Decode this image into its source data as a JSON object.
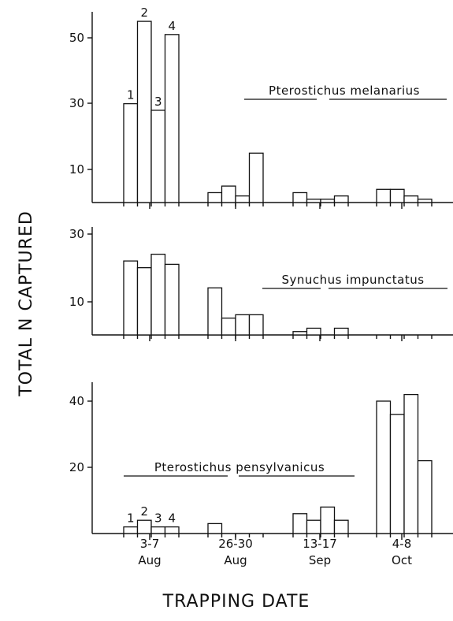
{
  "ylabel": "TOTAL N CAPTURED",
  "xlabel": "TRAPPING DATE",
  "x_groups": [
    {
      "line1": "3-7",
      "line2": "Aug"
    },
    {
      "line1": "26-30",
      "line2": "Aug"
    },
    {
      "line1": "13-17",
      "line2": "Sep"
    },
    {
      "line1": "4-8",
      "line2": "Oct"
    }
  ],
  "chart_data": [
    {
      "type": "bar",
      "title": "Pterostichus melanarius",
      "yticks": [
        10,
        30,
        50
      ],
      "ylim": [
        0,
        55
      ],
      "bar_numbers": [
        "1",
        "2",
        "3",
        "4"
      ],
      "groups": [
        {
          "label": "3-7 Aug",
          "values": [
            30,
            55,
            28,
            51
          ]
        },
        {
          "label": "26-30 Aug",
          "values": [
            3,
            5,
            2,
            15
          ]
        },
        {
          "label": "13-17 Sep",
          "values": [
            3,
            1,
            1,
            2
          ]
        },
        {
          "label": "4-8 Oct",
          "values": [
            4,
            4,
            2,
            1
          ]
        }
      ]
    },
    {
      "type": "bar",
      "title": "Synuchus impunctatus",
      "yticks": [
        10,
        30
      ],
      "ylim": [
        0,
        32
      ],
      "groups": [
        {
          "label": "3-7 Aug",
          "values": [
            22,
            20,
            24,
            21
          ]
        },
        {
          "label": "26-30 Aug",
          "values": [
            14,
            5,
            6,
            6
          ]
        },
        {
          "label": "13-17 Sep",
          "values": [
            1,
            2,
            0,
            2
          ]
        },
        {
          "label": "4-8 Oct",
          "values": [
            0,
            0,
            0,
            0
          ]
        }
      ]
    },
    {
      "type": "bar",
      "title": "Pterostichus pensylvanicus",
      "yticks": [
        20,
        40
      ],
      "ylim": [
        0,
        46
      ],
      "bar_numbers": [
        "1",
        "2",
        "3",
        "4"
      ],
      "groups": [
        {
          "label": "3-7 Aug",
          "values": [
            2,
            4,
            2,
            2
          ]
        },
        {
          "label": "26-30 Aug",
          "values": [
            3,
            0,
            0,
            0
          ]
        },
        {
          "label": "13-17 Sep",
          "values": [
            6,
            4,
            8,
            4
          ]
        },
        {
          "label": "4-8 Oct",
          "values": [
            40,
            36,
            42,
            22
          ]
        }
      ]
    }
  ]
}
